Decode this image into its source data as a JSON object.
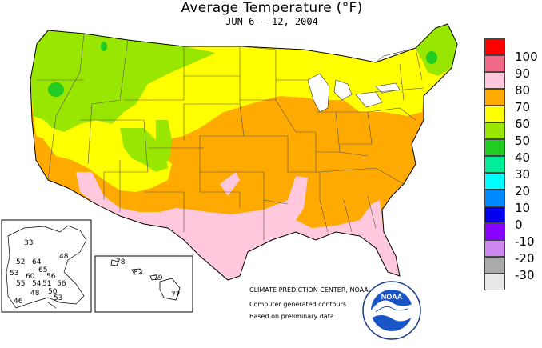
{
  "map": {
    "title": "Average Temperature (°F)",
    "subtitle": "JUN 6 - 12, 2004",
    "legend": [
      {
        "label": "100",
        "color": "#ff0000"
      },
      {
        "label": "90",
        "color": "#f06a8a"
      },
      {
        "label": "80",
        "color": "#ffc8dc"
      },
      {
        "label": "70",
        "color": "#ffaa00"
      },
      {
        "label": "60",
        "color": "#ffff00"
      },
      {
        "label": "50",
        "color": "#99e600"
      },
      {
        "label": "40",
        "color": "#22cc22"
      },
      {
        "label": "30",
        "color": "#00ee99"
      },
      {
        "label": "20",
        "color": "#00ffff"
      },
      {
        "label": "10",
        "color": "#0088ff"
      },
      {
        "label": "0",
        "color": "#0000ee"
      },
      {
        "label": "-10",
        "color": "#8800ff"
      },
      {
        "label": "-20",
        "color": "#cc88ee"
      },
      {
        "label": "-30",
        "color": "#aaaaaa"
      },
      {
        "label": "",
        "color": "#e8e8e8"
      }
    ],
    "alaska_values": [
      "33",
      "52",
      "64",
      "48",
      "53",
      "60",
      "65",
      "56",
      "55",
      "54",
      "51",
      "56",
      "48",
      "50",
      "53",
      "46"
    ],
    "hawaii_values": [
      "78",
      "82",
      "79",
      "77"
    ],
    "credits": {
      "line1": "CLIMATE PREDICTION CENTER, NOAA",
      "line2": "Computer generated contours",
      "line3": "Based on preliminary data"
    },
    "logo_text": "NOAA"
  }
}
